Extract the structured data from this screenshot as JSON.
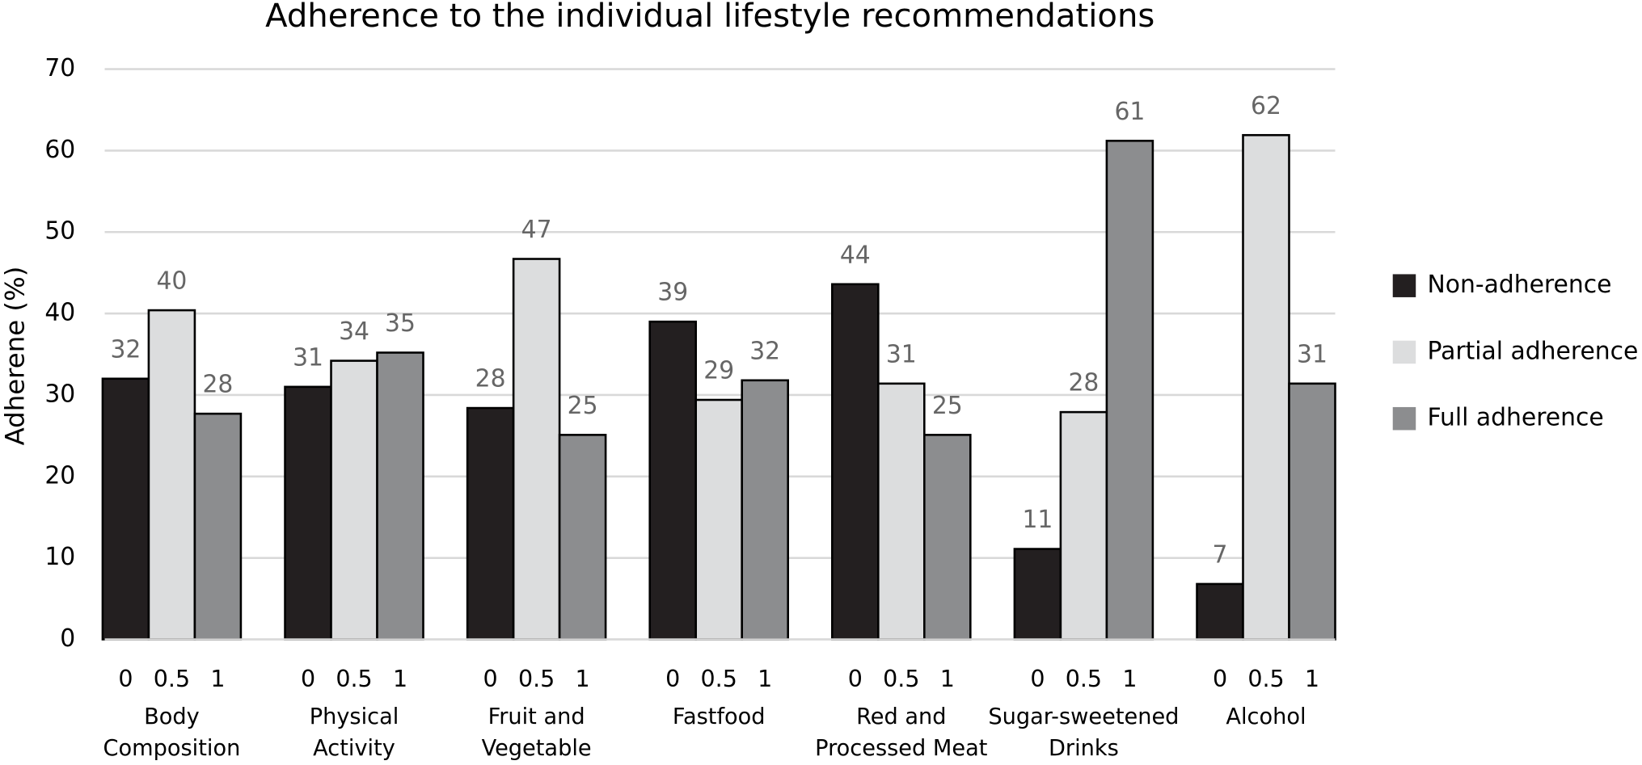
{
  "chart_data": {
    "type": "bar",
    "title": "Adherence to the individual lifestyle recommendations",
    "y_label": "Adherene (%)",
    "categories": [
      [
        "Body",
        "Composition"
      ],
      [
        "Physical",
        "Activity"
      ],
      [
        "Fruit and",
        "Vegetable"
      ],
      [
        "Fastfood"
      ],
      [
        "Red and",
        "Processed Meat"
      ],
      [
        "Sugar-sweetened",
        "Drinks"
      ],
      [
        "Alcohol"
      ]
    ],
    "subcategories": [
      0,
      0.5,
      1
    ],
    "series": [
      {
        "name": "Non-adherence",
        "color": "#231f20",
        "values": [
          32,
          31,
          28.4,
          39,
          43.6,
          11.1,
          6.8
        ],
        "value_labels": [
          "32",
          "31",
          "28",
          "39",
          "44",
          "11",
          "7"
        ]
      },
      {
        "name": "Partial adherence",
        "color": "#dcddde",
        "values": [
          40.4,
          34.2,
          46.7,
          29.4,
          31.4,
          27.9,
          61.9
        ],
        "value_labels": [
          "40",
          "34",
          "47",
          "29",
          "31",
          "28",
          "62"
        ]
      },
      {
        "name": "Full adherence",
        "color": "#8c8d8f",
        "values": [
          27.7,
          35.2,
          25.1,
          31.8,
          25.1,
          61.2,
          31.4
        ],
        "value_labels": [
          "28",
          "35",
          "25",
          "32",
          "25",
          "61",
          "31"
        ]
      }
    ],
    "ylim": [
      0,
      70
    ],
    "yticks": [
      0,
      10,
      20,
      30,
      40,
      50,
      60,
      70
    ],
    "grid": true,
    "legend": "right"
  }
}
